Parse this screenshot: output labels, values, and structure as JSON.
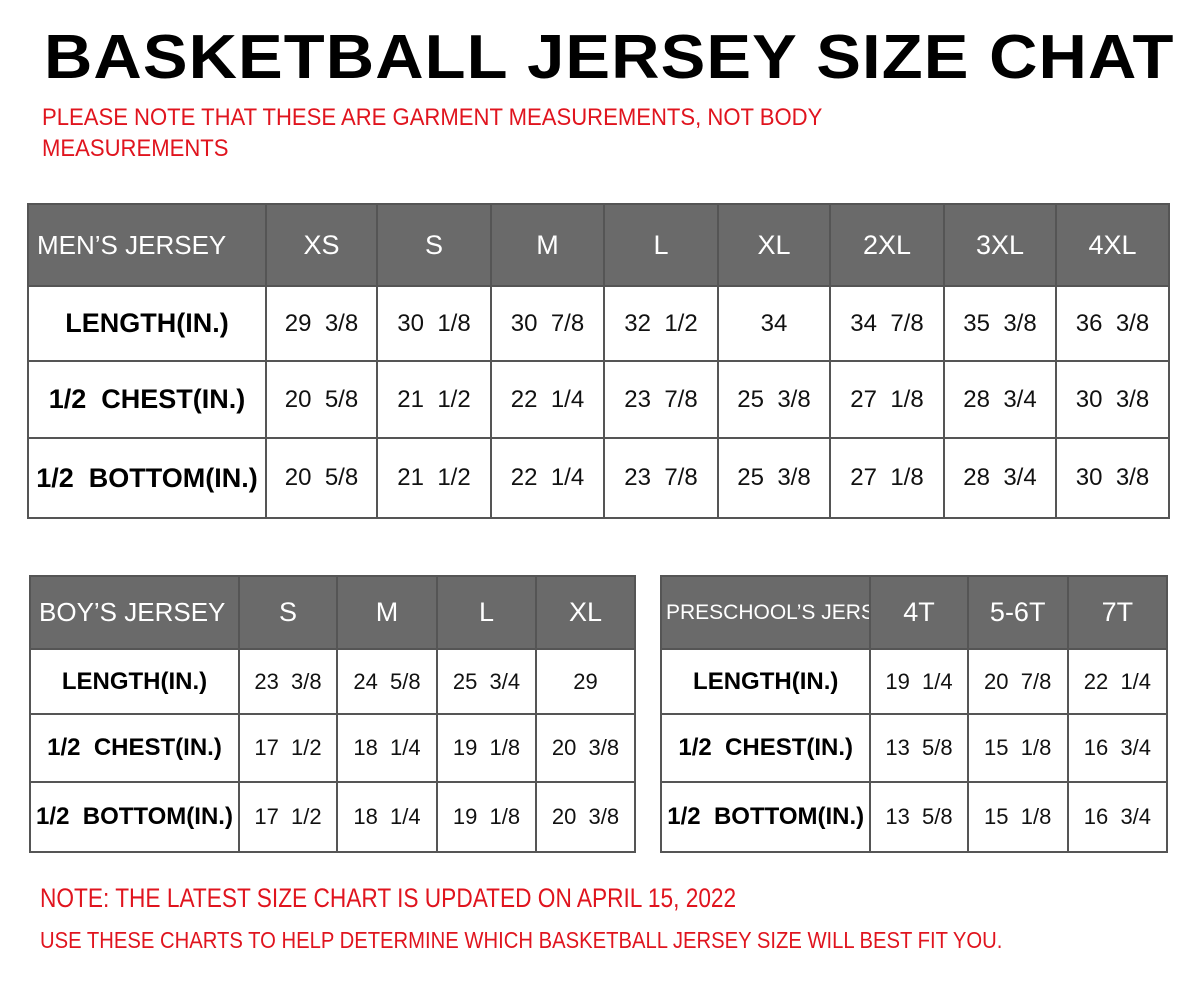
{
  "title": "BASKETBALL JERSEY SIZE CHAT",
  "note_top": "PLEASE NOTE THAT THESE ARE GARMENT MEASUREMENTS, NOT BODY MEASUREMENTS",
  "colors": {
    "header_bg": "#6a6a6a",
    "note_red": "#e0141e"
  },
  "tables": {
    "men": {
      "headers": [
        "MEN’S JERSEY",
        "XS",
        "S",
        "M",
        "L",
        "XL",
        "2XL",
        "3XL",
        "4XL"
      ],
      "rows": [
        [
          "LENGTH(IN.)",
          "29  3/8",
          "30  1/8",
          "30  7/8",
          "32  1/2",
          "34",
          "34  7/8",
          "35  3/8",
          "36  3/8"
        ],
        [
          "1/2  CHEST(IN.)",
          "20  5/8",
          "21  1/2",
          "22  1/4",
          "23  7/8",
          "25  3/8",
          "27  1/8",
          "28  3/4",
          "30  3/8"
        ],
        [
          "1/2  BOTTOM(IN.)",
          "20  5/8",
          "21  1/2",
          "22  1/4",
          "23  7/8",
          "25  3/8",
          "27  1/8",
          "28  3/4",
          "30  3/8"
        ]
      ]
    },
    "boy": {
      "headers": [
        "BOY’S JERSEY",
        "S",
        "M",
        "L",
        "XL"
      ],
      "rows": [
        [
          "LENGTH(IN.)",
          "23  3/8",
          "24  5/8",
          "25  3/4",
          "29"
        ],
        [
          "1/2  CHEST(IN.)",
          "17  1/2",
          "18  1/4",
          "19  1/8",
          "20  3/8"
        ],
        [
          "1/2  BOTTOM(IN.)",
          "17  1/2",
          "18  1/4",
          "19  1/8",
          "20  3/8"
        ]
      ]
    },
    "pre": {
      "headers": [
        "PRESCHOOL’S JERSEY",
        "4T",
        "5-6T",
        "7T"
      ],
      "rows": [
        [
          "LENGTH(IN.)",
          "19  1/4",
          "20  7/8",
          "22  1/4"
        ],
        [
          "1/2  CHEST(IN.)",
          "13  5/8",
          "15  1/8",
          "16  3/4"
        ],
        [
          "1/2  BOTTOM(IN.)",
          "13  5/8",
          "15  1/8",
          "16  3/4"
        ]
      ]
    }
  },
  "note_updated": "NOTE: THE LATEST SIZE CHART IS UPDATED ON APRIL 15, 2022",
  "note_fit": "USE THESE CHARTS TO HELP DETERMINE WHICH  BASKETBALL JERSEY  SIZE WILL BEST FIT YOU."
}
